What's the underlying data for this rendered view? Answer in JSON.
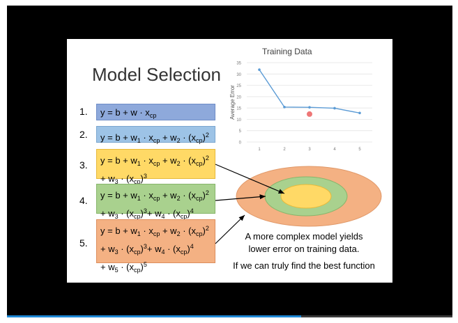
{
  "slide": {
    "title": "Model Selection",
    "models": [
      {
        "number": "1."
      },
      {
        "number": "2."
      },
      {
        "number": "3."
      },
      {
        "number": "4."
      },
      {
        "number": "5."
      }
    ],
    "caption_line1": "A more complex model yields",
    "caption_line2": "lower error on training data.",
    "caption_line3": "If we can truly find the best function"
  },
  "player": {
    "progress_fraction": 0.66
  },
  "chart_data": {
    "type": "line",
    "title": "Training Data",
    "xlabel": "",
    "ylabel": "Average Error",
    "x": [
      1,
      2,
      3,
      4,
      5
    ],
    "values": [
      31.9,
      15.4,
      15.3,
      14.9,
      12.8
    ],
    "ylim": [
      0,
      35
    ],
    "yticks": [
      0,
      5,
      10,
      15,
      20,
      25,
      30,
      35
    ],
    "grid": true,
    "colors": {
      "line": "#5b9bd5",
      "marker": "#e84a4a"
    }
  }
}
